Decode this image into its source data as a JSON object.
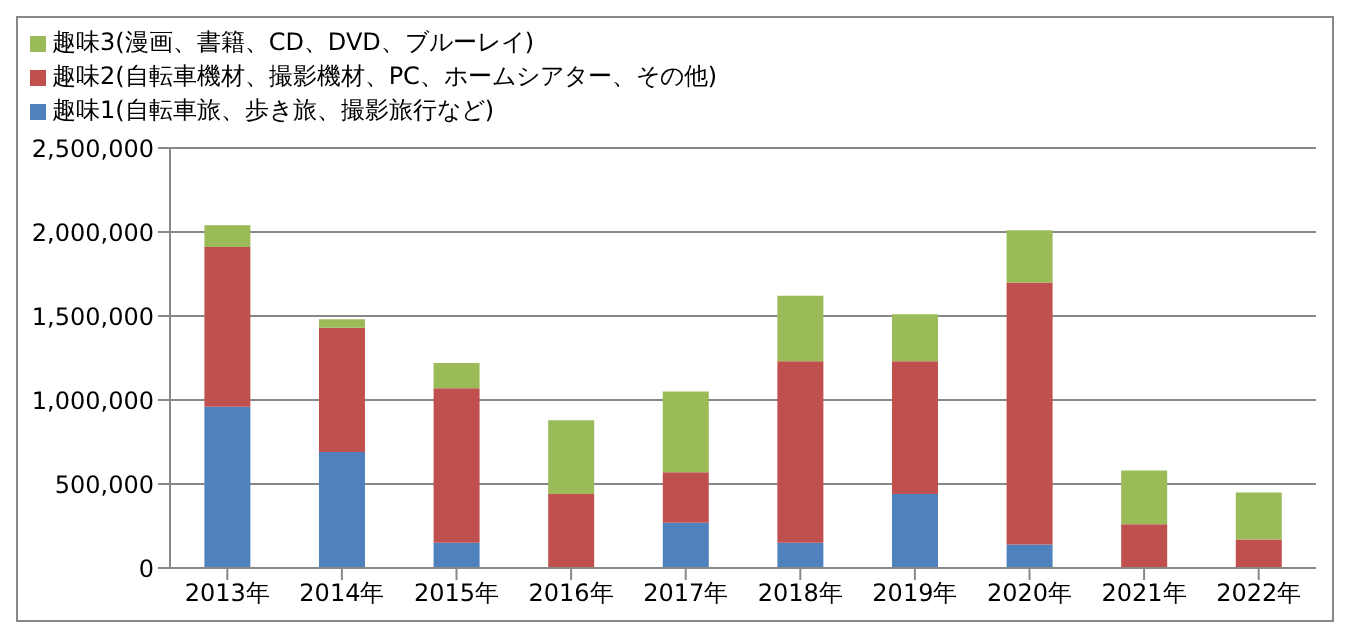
{
  "chart_data": {
    "type": "bar",
    "stacked": true,
    "categories": [
      "2013年",
      "2014年",
      "2015年",
      "2016年",
      "2017年",
      "2018年",
      "2019年",
      "2020年",
      "2021年",
      "2022年"
    ],
    "series": [
      {
        "name": "趣味1(自転車旅、歩き旅、撮影旅行など)",
        "color": "#4f81bd",
        "values": [
          960000,
          690000,
          150000,
          0,
          270000,
          150000,
          440000,
          140000,
          0,
          0
        ]
      },
      {
        "name": "趣味2(自転車機材、撮影機材、PC、ホームシアター、その他)",
        "color": "#c0504d",
        "values": [
          950000,
          740000,
          920000,
          440000,
          300000,
          1080000,
          790000,
          1560000,
          260000,
          170000
        ]
      },
      {
        "name": "趣味3(漫画、書籍、CD、DVD、ブルーレイ)",
        "color": "#9bbb59",
        "values": [
          130000,
          50000,
          150000,
          440000,
          480000,
          390000,
          280000,
          310000,
          320000,
          280000
        ]
      }
    ],
    "ylim": [
      0,
      2500000
    ],
    "yticks": [
      {
        "value": 0,
        "label": "0"
      },
      {
        "value": 500000,
        "label": "500,000"
      },
      {
        "value": 1000000,
        "label": "1,000,000"
      },
      {
        "value": 1500000,
        "label": "1,500,000"
      },
      {
        "value": 2000000,
        "label": "2,000,000"
      },
      {
        "value": 2500000,
        "label": "2,500,000"
      }
    ],
    "grid": "y",
    "legend": "top"
  }
}
